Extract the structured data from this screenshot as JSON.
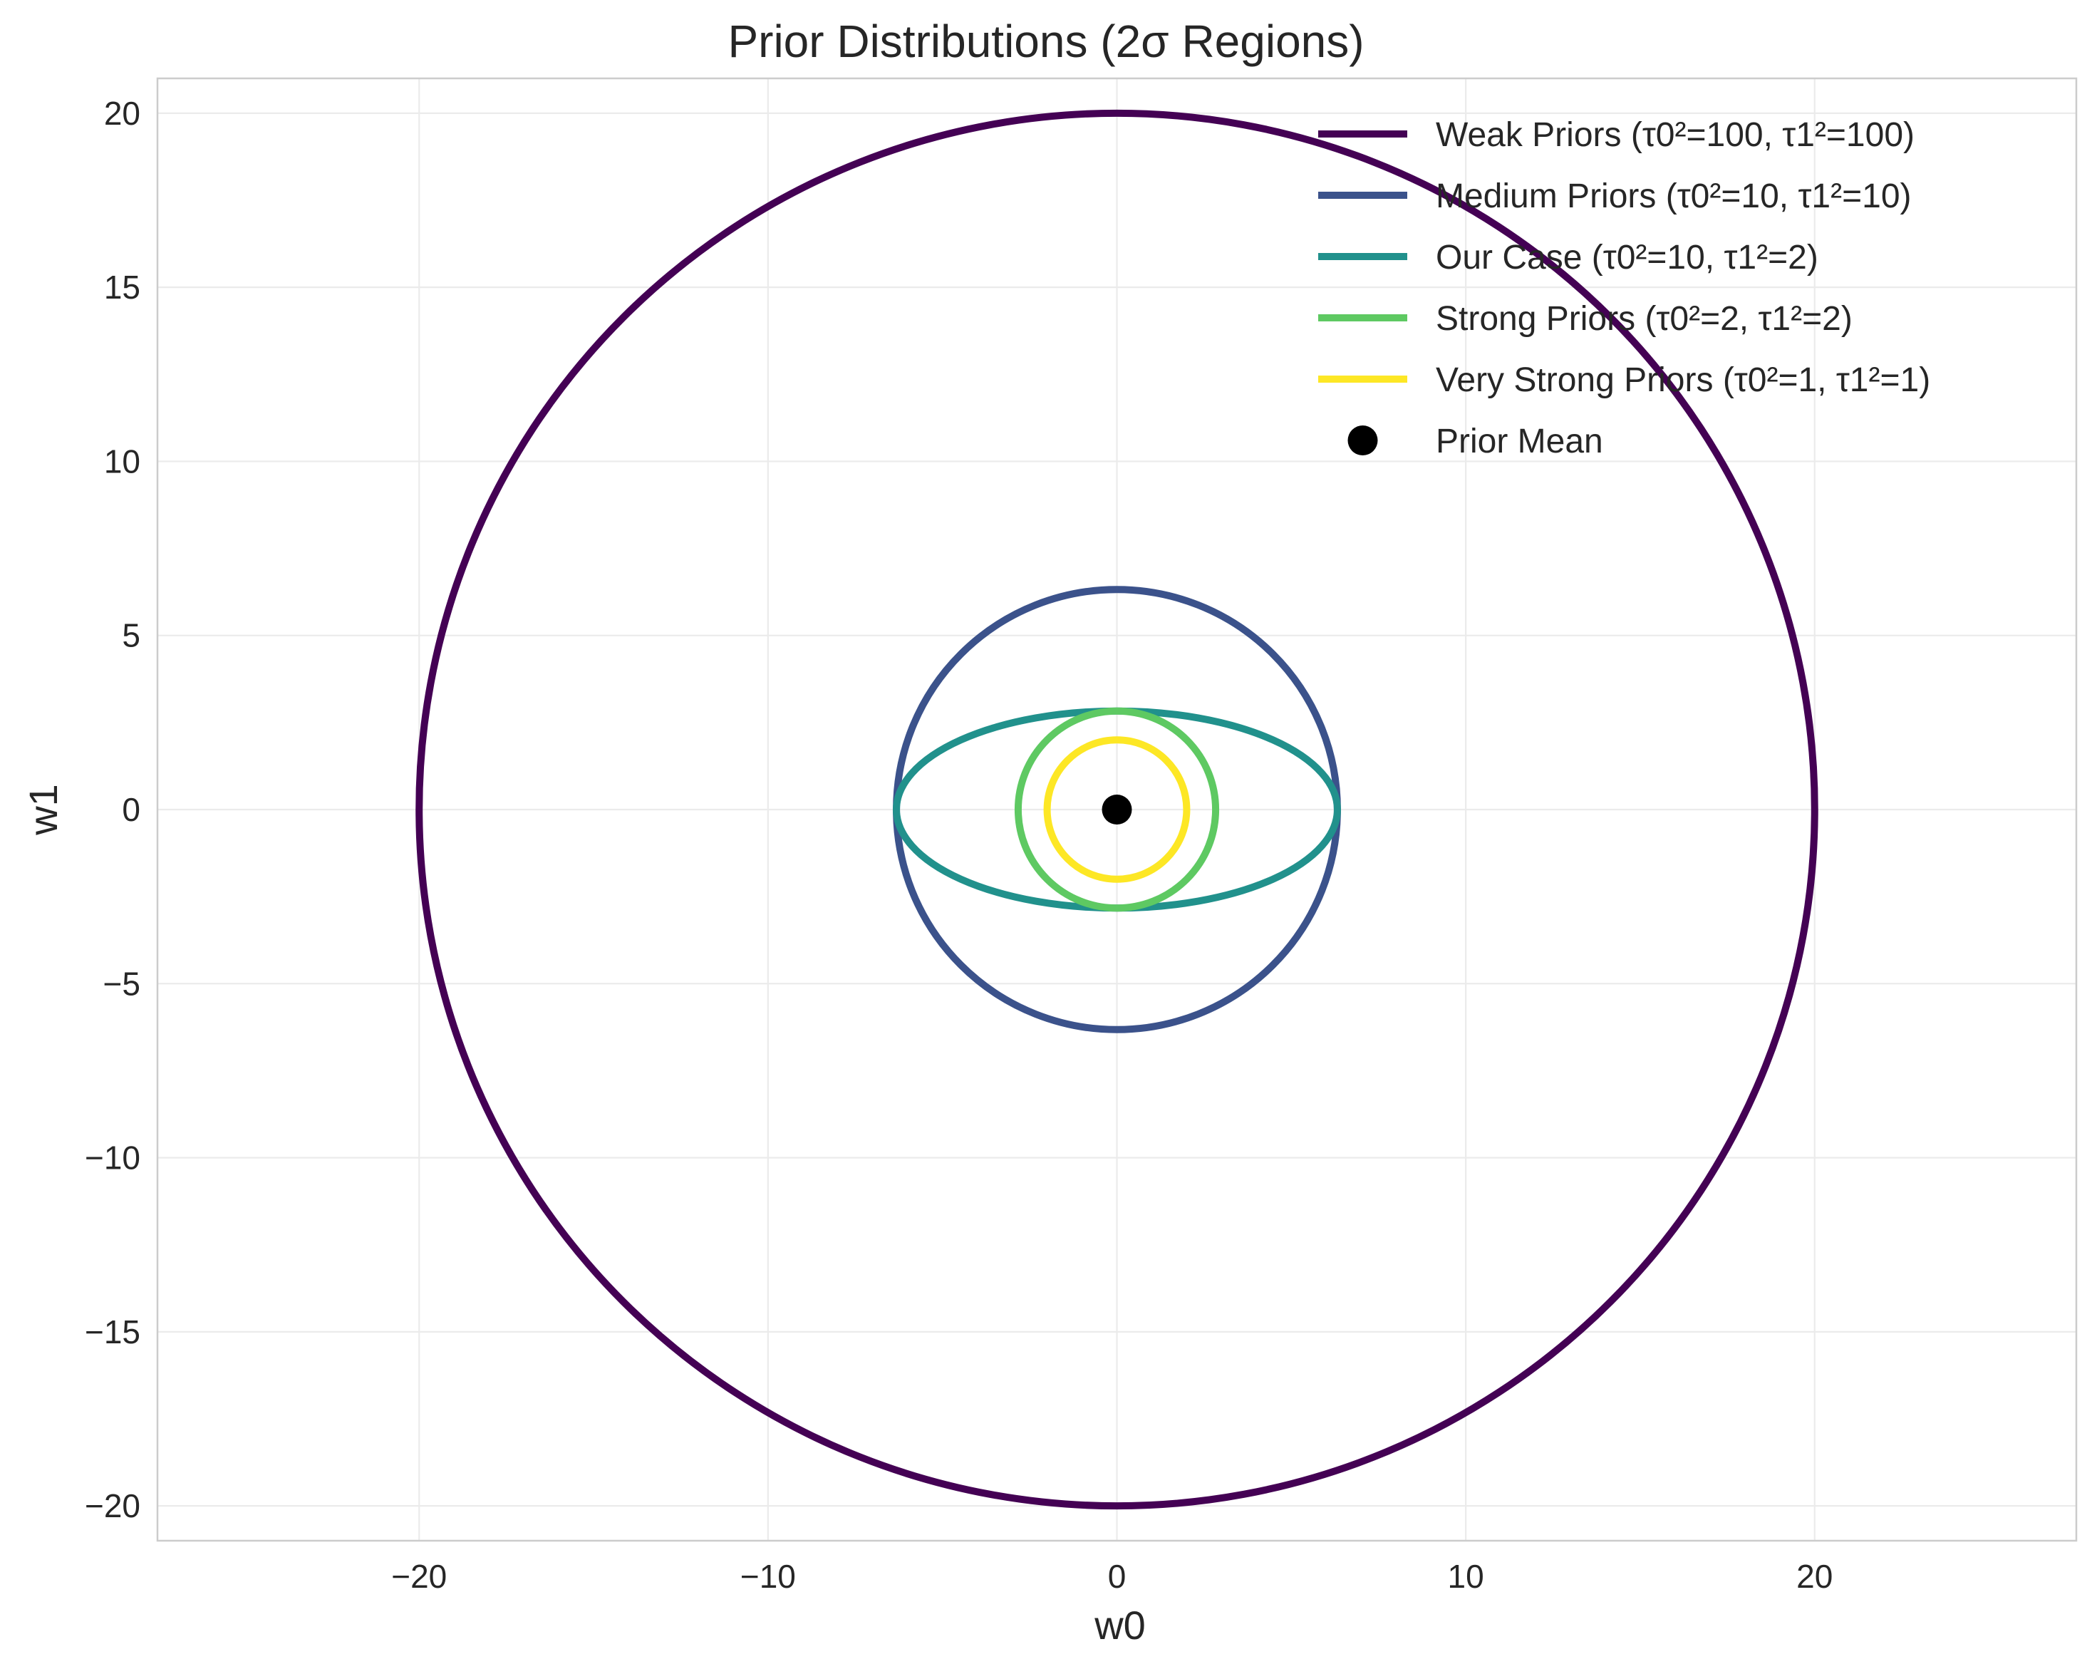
{
  "chart_data": {
    "type": "line",
    "title": "Prior Distributions (2σ Regions)",
    "xlabel": "w0",
    "ylabel": "w1",
    "xlim": [
      -27.5,
      27.5
    ],
    "ylim": [
      -21,
      21
    ],
    "xticks": [
      -20,
      -10,
      0,
      10,
      20
    ],
    "yticks": [
      -20,
      -15,
      -10,
      -5,
      0,
      5,
      10,
      15,
      20
    ],
    "xtick_labels": [
      "−20",
      "−10",
      "0",
      "10",
      "20"
    ],
    "ytick_labels": [
      "−20",
      "−15",
      "−10",
      "−5",
      "0",
      "5",
      "10",
      "15",
      "20"
    ],
    "grid": true,
    "legend_position": "top-right",
    "series": [
      {
        "name": "Weak Priors (τ0²=100, τ1²=100)",
        "color": "#440154",
        "center": [
          0,
          0
        ],
        "rx": 20,
        "ry": 20
      },
      {
        "name": "Medium Priors (τ0²=10, τ1²=10)",
        "color": "#3b528b",
        "center": [
          0,
          0
        ],
        "rx": 6.32,
        "ry": 6.32
      },
      {
        "name": "Our Case (τ0²=10, τ1²=2)",
        "color": "#21918c",
        "center": [
          0,
          0
        ],
        "rx": 6.32,
        "ry": 2.83
      },
      {
        "name": "Strong Priors (τ0²=2, τ1²=2)",
        "color": "#5ec962",
        "center": [
          0,
          0
        ],
        "rx": 2.83,
        "ry": 2.83
      },
      {
        "name": "Very Strong Priors (τ0²=1, τ1²=1)",
        "color": "#fde725",
        "center": [
          0,
          0
        ],
        "rx": 2,
        "ry": 2
      }
    ],
    "points": [
      {
        "name": "Prior Mean",
        "x": 0,
        "y": 0,
        "color": "#000000"
      }
    ]
  }
}
